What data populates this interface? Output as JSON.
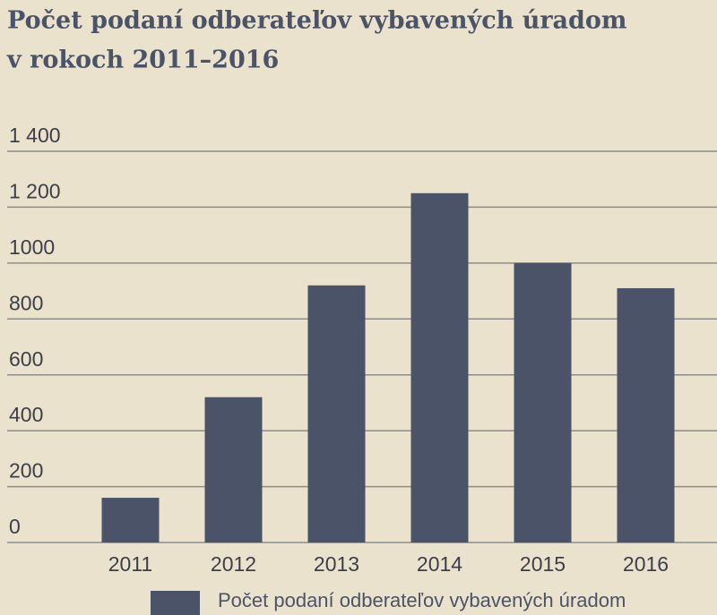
{
  "chart_data": {
    "type": "bar",
    "title": [
      "Počet podaní odberateľov vybavených úradom",
      "v rokoch 2011–2016"
    ],
    "categories": [
      "2011",
      "2012",
      "2013",
      "2014",
      "2015",
      "2016"
    ],
    "series": [
      {
        "name": "Počet podaní odberateľov vybavených úradom",
        "color": "#4a5368",
        "values": [
          160,
          520,
          920,
          1250,
          1000,
          910
        ]
      }
    ],
    "ylim": [
      0,
      1400
    ],
    "yticks": [
      0,
      200,
      400,
      600,
      800,
      1000,
      {
        "value": 1200,
        "label": "1 200"
      },
      {
        "value": 1400,
        "label": "1 400"
      }
    ],
    "grid": true,
    "legend": "bottom"
  }
}
